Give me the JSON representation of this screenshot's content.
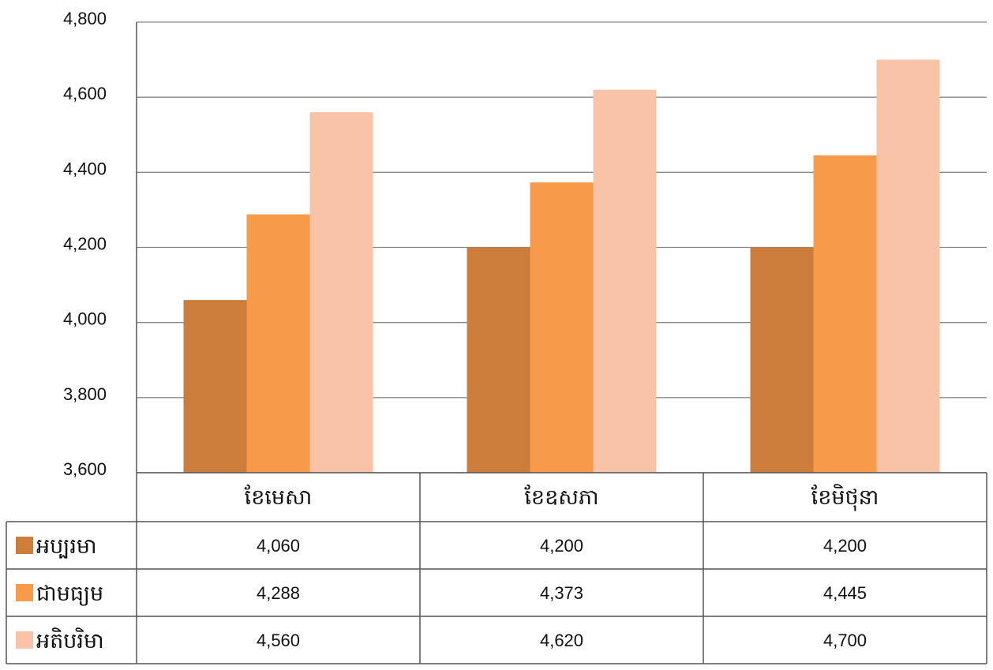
{
  "chart_data": {
    "type": "bar",
    "categories": [
      "ខែមេសា",
      "ខែឧសភា",
      "ខែមិថុនា"
    ],
    "series": [
      {
        "name": "អប្បរមា",
        "values": [
          4060,
          4200,
          4200
        ],
        "color": "#CD7D3B",
        "display": [
          "4,060",
          "4,200",
          "4,200"
        ]
      },
      {
        "name": "ជាមធ្យម",
        "values": [
          4288,
          4373,
          4445
        ],
        "color": "#F79A4A",
        "display": [
          "4,288",
          "4,373",
          "4,445"
        ]
      },
      {
        "name": "អតិបរិមា",
        "values": [
          4560,
          4620,
          4700
        ],
        "color": "#F9C3A7",
        "display": [
          "4,560",
          "4,620",
          "4,700"
        ]
      }
    ],
    "ylim": [
      3600,
      4800
    ],
    "yticks": [
      3600,
      3800,
      4000,
      4200,
      4400,
      4600,
      4800
    ],
    "ytick_labels": [
      "3,600",
      "3,800",
      "4,000",
      "4,200",
      "4,400",
      "4,600",
      "4,800"
    ],
    "grid": true,
    "legend": "data-table",
    "gridline_color": "#888888",
    "border_color": "#555555"
  }
}
